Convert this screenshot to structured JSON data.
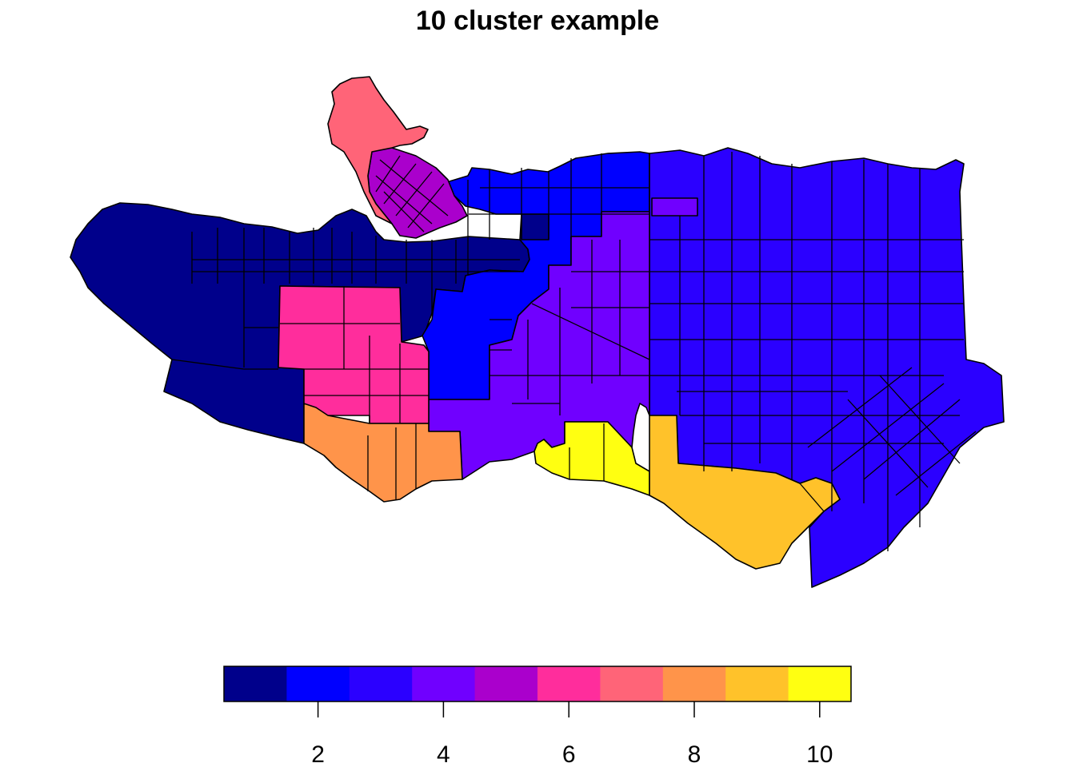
{
  "title": "10 cluster example",
  "legend": {
    "colors": [
      "#00008B",
      "#0000FF",
      "#2B00FF",
      "#7000FF",
      "#AA00CC",
      "#FF2D9C",
      "#FF6478",
      "#FF944A",
      "#FFC22A",
      "#FFFF11"
    ],
    "tick_labels": [
      "2",
      "4",
      "6",
      "8",
      "10"
    ],
    "tick_values": [
      2,
      4,
      6,
      8,
      10
    ],
    "range": [
      0.5,
      10.5
    ]
  },
  "map": {
    "cluster_colors": {
      "1": "#00008B",
      "2": "#0000FF",
      "3": "#2B00FF",
      "4": "#7000FF",
      "5": "#AA00CC",
      "6": "#FF2D9C",
      "7": "#FF6478",
      "8": "#FF944A",
      "9": "#FFC22A",
      "10": "#FFFF11"
    }
  }
}
